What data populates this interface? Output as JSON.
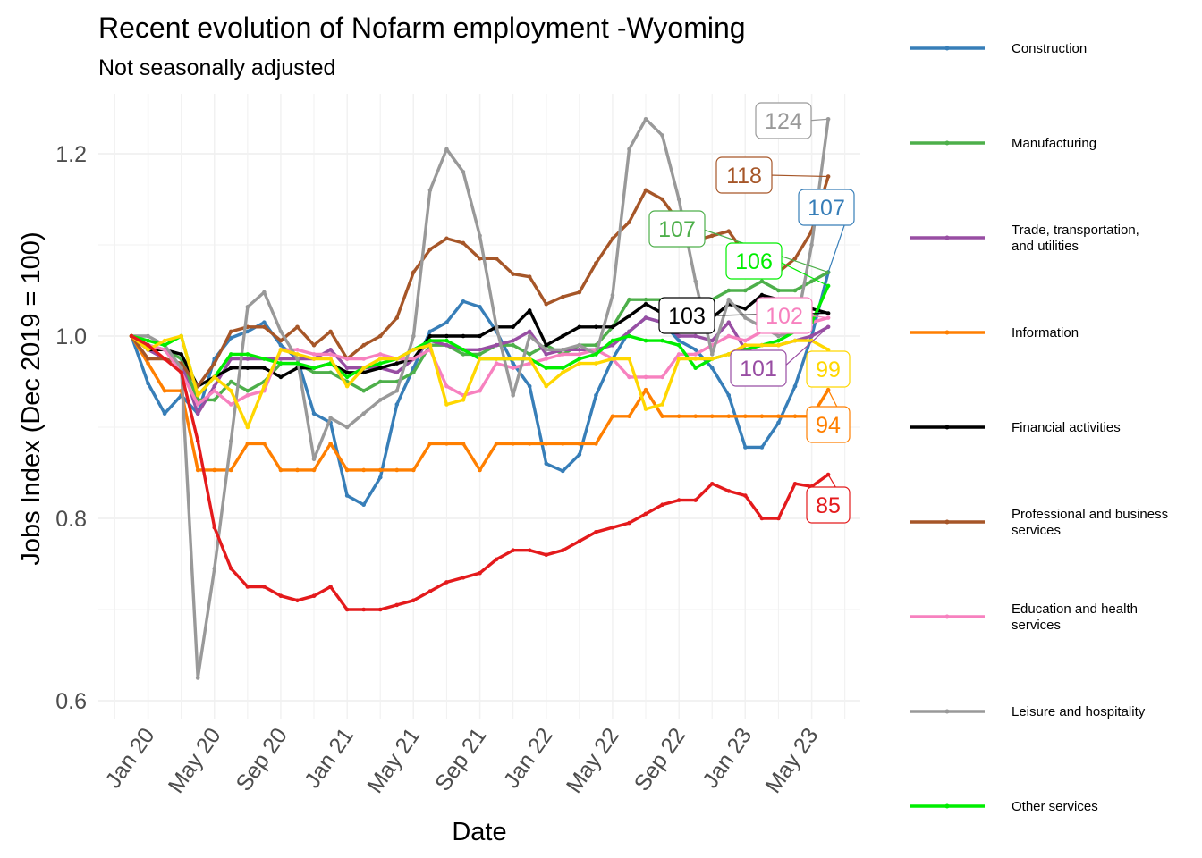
{
  "title": "Recent evolution of Nofarm employment -Wyoming",
  "subtitle": "Not seasonally adjusted",
  "chart_data": {
    "type": "line",
    "title": "Recent evolution of Nofarm employment -Wyoming",
    "subtitle": "Not seasonally adjusted",
    "xlabel": "Date",
    "ylabel": "Jobs Index (Dec 2019 = 100)",
    "x_start": "Dec 19",
    "x_end": "Jun 23",
    "x_ticks": [
      "Jan 20",
      "May 20",
      "Sep 20",
      "Jan 21",
      "May 21",
      "Sep 21",
      "Jan 22",
      "May 22",
      "Sep 22",
      "Jan 23",
      "May 23"
    ],
    "y_ticks": [
      "0.6",
      "0.8",
      "1.0",
      "1.2"
    ],
    "ylim": [
      0.59,
      1.26
    ],
    "grid": true,
    "legend_position": "right",
    "series": [
      {
        "name": "Construction",
        "color": "#377eb8",
        "end_label": "107",
        "values": [
          1.0,
          0.948,
          0.915,
          0.935,
          0.915,
          0.975,
          0.998,
          1.005,
          1.015,
          0.99,
          0.975,
          0.915,
          0.905,
          0.825,
          0.815,
          0.845,
          0.925,
          0.965,
          1.005,
          1.015,
          1.038,
          1.032,
          1.005,
          0.97,
          0.945,
          0.86,
          0.852,
          0.87,
          0.935,
          0.975,
          1.005,
          1.02,
          1.015,
          0.995,
          0.985,
          0.965,
          0.935,
          0.878,
          0.878,
          0.905,
          0.945,
          1.0,
          1.07
        ]
      },
      {
        "name": "Manufacturing",
        "color": "#4daf4a",
        "end_label": "107",
        "values": [
          1.0,
          0.99,
          0.985,
          0.975,
          0.93,
          0.93,
          0.95,
          0.94,
          0.95,
          0.97,
          0.97,
          0.96,
          0.96,
          0.95,
          0.94,
          0.95,
          0.95,
          0.96,
          0.99,
          0.99,
          0.98,
          0.98,
          0.99,
          0.99,
          0.98,
          0.99,
          0.98,
          0.99,
          0.99,
          1.01,
          1.04,
          1.04,
          1.04,
          1.03,
          1.03,
          1.04,
          1.05,
          1.05,
          1.06,
          1.05,
          1.05,
          1.06,
          1.07
        ]
      },
      {
        "name": "Trade, transportation,\nand utilities",
        "color": "#984ea3",
        "end_label": "101",
        "values": [
          1.0,
          0.985,
          0.975,
          0.97,
          0.915,
          0.945,
          0.975,
          0.975,
          0.975,
          0.975,
          0.975,
          0.975,
          0.985,
          0.965,
          0.965,
          0.965,
          0.96,
          0.975,
          0.995,
          0.99,
          0.985,
          0.985,
          0.99,
          0.995,
          1.005,
          0.98,
          0.985,
          0.985,
          0.985,
          0.99,
          1.005,
          1.02,
          1.015,
          1.0,
          1.0,
          0.995,
          1.015,
          0.985,
          0.99,
          0.99,
          0.995,
          1.0,
          1.01
        ]
      },
      {
        "name": "Information",
        "color": "#ff7f00",
        "end_label": "94",
        "values": [
          1.0,
          0.97,
          0.94,
          0.94,
          0.853,
          0.853,
          0.853,
          0.882,
          0.882,
          0.853,
          0.853,
          0.853,
          0.882,
          0.853,
          0.853,
          0.853,
          0.853,
          0.853,
          0.882,
          0.882,
          0.882,
          0.853,
          0.882,
          0.882,
          0.882,
          0.882,
          0.882,
          0.882,
          0.882,
          0.912,
          0.912,
          0.941,
          0.912,
          0.912,
          0.912,
          0.912,
          0.912,
          0.912,
          0.912,
          0.912,
          0.912,
          0.912,
          0.941
        ]
      },
      {
        "name": "Financial activities",
        "color": "#000000",
        "end_label": "103",
        "values": [
          1.0,
          0.985,
          0.985,
          0.98,
          0.945,
          0.955,
          0.965,
          0.965,
          0.965,
          0.955,
          0.965,
          0.965,
          0.97,
          0.96,
          0.96,
          0.965,
          0.97,
          0.975,
          1.0,
          1.0,
          1.0,
          1.0,
          1.01,
          1.01,
          1.028,
          0.99,
          1.0,
          1.01,
          1.01,
          1.01,
          1.022,
          1.035,
          1.025,
          1.02,
          1.01,
          1.02,
          1.035,
          1.03,
          1.045,
          1.04,
          1.035,
          1.03,
          1.025
        ]
      },
      {
        "name": "Professional and business\nservices",
        "color": "#a65628",
        "end_label": "118",
        "values": [
          1.0,
          0.975,
          0.975,
          0.97,
          0.945,
          0.97,
          1.005,
          1.01,
          1.01,
          0.995,
          1.01,
          0.99,
          1.005,
          0.975,
          0.99,
          1.0,
          1.02,
          1.07,
          1.095,
          1.107,
          1.102,
          1.085,
          1.085,
          1.068,
          1.065,
          1.035,
          1.043,
          1.048,
          1.08,
          1.107,
          1.125,
          1.16,
          1.15,
          1.125,
          1.105,
          1.11,
          1.115,
          1.09,
          1.09,
          1.07,
          1.085,
          1.115,
          1.175
        ]
      },
      {
        "name": "Education and health\nservices",
        "color": "#f781bf",
        "end_label": "102",
        "values": [
          1.0,
          0.99,
          0.985,
          0.96,
          0.925,
          0.94,
          0.925,
          0.935,
          0.94,
          0.985,
          0.985,
          0.98,
          0.98,
          0.975,
          0.975,
          0.98,
          0.975,
          0.975,
          0.985,
          0.945,
          0.935,
          0.94,
          0.97,
          0.965,
          0.97,
          0.975,
          0.98,
          0.98,
          0.985,
          0.975,
          0.955,
          0.955,
          0.955,
          0.98,
          0.98,
          0.99,
          1.0,
          0.995,
          1.005,
          1.01,
          1.01,
          1.015,
          1.02
        ]
      },
      {
        "name": "Leisure and hospitality",
        "color": "#999999",
        "end_label": "124",
        "values": [
          1.0,
          1.0,
          0.99,
          0.965,
          0.625,
          0.745,
          0.885,
          1.032,
          1.048,
          1.005,
          0.975,
          0.865,
          0.91,
          0.9,
          0.915,
          0.93,
          0.94,
          1.0,
          1.16,
          1.205,
          1.18,
          1.11,
          1.01,
          0.935,
          1.0,
          0.985,
          0.985,
          0.99,
          0.98,
          1.045,
          1.205,
          1.238,
          1.22,
          1.15,
          1.06,
          0.98,
          1.04,
          1.02,
          1.01,
          1.0,
          1.005,
          1.1,
          1.238
        ]
      },
      {
        "name": "Other services",
        "color": "#00ee00",
        "end_label": "106",
        "values": [
          1.0,
          0.995,
          0.99,
          1.0,
          0.935,
          0.955,
          0.98,
          0.98,
          0.975,
          0.97,
          0.97,
          0.965,
          0.97,
          0.955,
          0.965,
          0.97,
          0.975,
          0.985,
          0.995,
          0.995,
          0.985,
          0.975,
          0.975,
          0.975,
          0.975,
          0.965,
          0.965,
          0.975,
          0.98,
          0.995,
          1.0,
          0.995,
          0.995,
          0.99,
          0.965,
          0.975,
          0.98,
          0.985,
          0.99,
          0.995,
          1.005,
          1.015,
          1.055
        ]
      },
      {
        "name": "",
        "color": "#ffd700",
        "end_label": "99",
        "values": [
          1.0,
          0.985,
          0.995,
          1.0,
          0.935,
          0.955,
          0.94,
          0.9,
          0.945,
          0.985,
          0.98,
          0.975,
          0.975,
          0.945,
          0.965,
          0.975,
          0.975,
          0.985,
          0.99,
          0.925,
          0.93,
          0.975,
          0.975,
          0.975,
          0.975,
          0.945,
          0.96,
          0.97,
          0.97,
          0.975,
          0.975,
          0.92,
          0.925,
          0.975,
          0.975,
          0.975,
          0.98,
          0.99,
          0.99,
          0.99,
          0.995,
          0.995,
          0.985
        ]
      },
      {
        "name": "",
        "color": "#e41a1c",
        "end_label": "85",
        "values": [
          1.0,
          0.99,
          0.975,
          0.96,
          0.885,
          0.79,
          0.745,
          0.725,
          0.725,
          0.715,
          0.71,
          0.715,
          0.725,
          0.7,
          0.7,
          0.7,
          0.705,
          0.71,
          0.72,
          0.73,
          0.735,
          0.74,
          0.755,
          0.765,
          0.765,
          0.76,
          0.765,
          0.775,
          0.785,
          0.79,
          0.795,
          0.805,
          0.815,
          0.82,
          0.82,
          0.838,
          0.83,
          0.825,
          0.8,
          0.8,
          0.838,
          0.835,
          0.848
        ]
      }
    ]
  }
}
